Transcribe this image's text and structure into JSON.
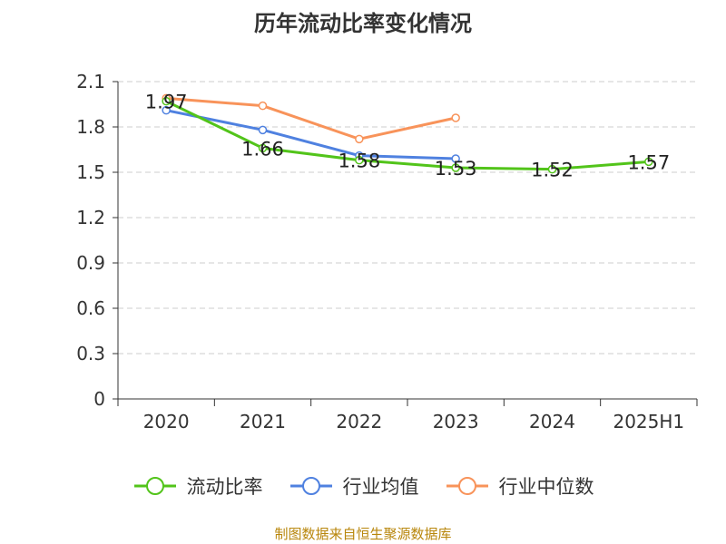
{
  "title": "历年流动比率变化情况",
  "footer": "制图数据来自恒生聚源数据库",
  "chart_data": {
    "type": "line",
    "title": "历年流动比率变化情况",
    "categories": [
      "2020",
      "2021",
      "2022",
      "2023",
      "2024",
      "2025H1"
    ],
    "ylim": [
      0,
      2.1
    ],
    "yticks": [
      "0",
      "0.3",
      "0.6",
      "0.9",
      "1.2",
      "1.5",
      "1.8",
      "2.1"
    ],
    "grid": true,
    "legend_position": "bottom",
    "series": [
      {
        "name": "流动比率",
        "color": "#52c41a",
        "values": [
          1.97,
          1.66,
          1.58,
          1.53,
          1.52,
          1.57
        ],
        "labels": [
          "1.97",
          "1.66",
          "1.58",
          "1.53",
          "1.52",
          "1.57"
        ]
      },
      {
        "name": "行业均值",
        "color": "#4f81e0",
        "values": [
          1.91,
          1.78,
          1.61,
          1.59,
          null,
          null
        ]
      },
      {
        "name": "行业中位数",
        "color": "#f8935a",
        "values": [
          1.99,
          1.94,
          1.72,
          1.86,
          null,
          null
        ]
      }
    ]
  }
}
